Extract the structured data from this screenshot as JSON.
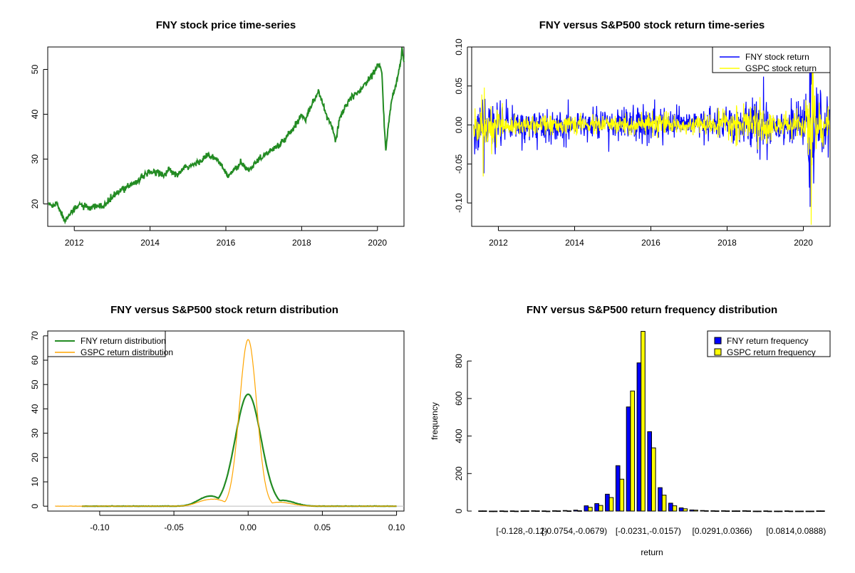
{
  "chart_data": [
    {
      "id": "price",
      "type": "line",
      "title": "FNY stock price time-series",
      "xlabel": "",
      "ylabel": "",
      "xlim": [
        2011.3,
        2020.7
      ],
      "ylim": [
        15,
        55
      ],
      "xticks": [
        2012,
        2014,
        2016,
        2018,
        2020
      ],
      "yticks": [
        20,
        30,
        40,
        50
      ],
      "series": [
        {
          "color": "#228b22",
          "x": [
            2011.33,
            2011.45,
            2011.55,
            2011.65,
            2011.75,
            2011.85,
            2012.0,
            2012.15,
            2012.3,
            2012.45,
            2012.6,
            2012.75,
            2012.9,
            2013.0,
            2013.2,
            2013.4,
            2013.6,
            2013.8,
            2014.0,
            2014.2,
            2014.4,
            2014.5,
            2014.7,
            2014.9,
            2015.1,
            2015.3,
            2015.5,
            2015.6,
            2015.75,
            2015.9,
            2016.05,
            2016.2,
            2016.4,
            2016.6,
            2016.8,
            2016.95,
            2017.2,
            2017.4,
            2017.6,
            2017.8,
            2018.0,
            2018.1,
            2018.25,
            2018.45,
            2018.65,
            2018.8,
            2018.9,
            2019.0,
            2019.1,
            2019.3,
            2019.5,
            2019.7,
            2019.9,
            2020.05,
            2020.12,
            2020.18,
            2020.22,
            2020.27,
            2020.32,
            2020.4,
            2020.5,
            2020.58,
            2020.65,
            2020.7
          ],
          "values": [
            20.0,
            19.5,
            20.3,
            18.0,
            16.2,
            17.8,
            18.5,
            20.0,
            19.2,
            19.0,
            19.6,
            19.4,
            20.5,
            21.5,
            22.8,
            24.0,
            24.8,
            26.0,
            27.0,
            27.2,
            26.5,
            27.8,
            26.2,
            28.0,
            28.5,
            29.5,
            30.8,
            30.5,
            30.0,
            28.5,
            26.0,
            27.5,
            29.0,
            27.5,
            29.5,
            30.5,
            32.0,
            33.0,
            35.0,
            37.0,
            40.0,
            39.0,
            42.0,
            45.0,
            40.0,
            37.0,
            34.0,
            39.0,
            41.0,
            43.5,
            45.0,
            47.0,
            49.5,
            51.5,
            49.0,
            37.0,
            32.0,
            36.0,
            40.0,
            44.0,
            47.0,
            50.0,
            54.5,
            52.0
          ]
        }
      ]
    },
    {
      "id": "returns",
      "type": "line",
      "title": "FNY versus S&P500 stock return time-series",
      "xlabel": "",
      "ylabel": "",
      "xlim": [
        2011.3,
        2020.7
      ],
      "ylim": [
        -0.13,
        0.1
      ],
      "xticks": [
        2012,
        2014,
        2016,
        2018,
        2020
      ],
      "yticks": [
        -0.1,
        -0.05,
        0.0,
        0.05,
        0.1
      ],
      "ytick_labels": [
        "-0.10",
        "-0.05",
        "0.00",
        "0.05",
        "0.10"
      ],
      "legend_position": "top-right",
      "series": [
        {
          "name": "FNY stock return",
          "color": "#0000ff",
          "volatility": [
            [
              2011.3,
              0.012
            ],
            [
              2011.5,
              0.022
            ],
            [
              2011.9,
              0.014
            ],
            [
              2012.5,
              0.01
            ],
            [
              2013.0,
              0.011
            ],
            [
              2014.0,
              0.01
            ],
            [
              2015.0,
              0.011
            ],
            [
              2016.0,
              0.012
            ],
            [
              2017.0,
              0.009
            ],
            [
              2018.0,
              0.012
            ],
            [
              2018.9,
              0.018
            ],
            [
              2019.3,
              0.011
            ],
            [
              2020.0,
              0.012
            ],
            [
              2020.2,
              0.04
            ],
            [
              2020.4,
              0.02
            ],
            [
              2020.7,
              0.014
            ]
          ],
          "extremes": [
            [
              2011.62,
              -0.062
            ],
            [
              2018.95,
              0.062
            ],
            [
              2019.05,
              -0.045
            ],
            [
              2020.18,
              -0.105
            ],
            [
              2020.22,
              0.078
            ],
            [
              2020.27,
              -0.075
            ]
          ]
        },
        {
          "name": "GSPC stock return",
          "color": "#ffff00",
          "volatility": [
            [
              2011.3,
              0.008
            ],
            [
              2011.5,
              0.018
            ],
            [
              2011.9,
              0.01
            ],
            [
              2012.5,
              0.006
            ],
            [
              2013.0,
              0.006
            ],
            [
              2014.0,
              0.005
            ],
            [
              2015.0,
              0.006
            ],
            [
              2016.0,
              0.008
            ],
            [
              2017.0,
              0.004
            ],
            [
              2018.0,
              0.009
            ],
            [
              2018.9,
              0.013
            ],
            [
              2019.3,
              0.007
            ],
            [
              2020.0,
              0.008
            ],
            [
              2020.2,
              0.04
            ],
            [
              2020.4,
              0.015
            ],
            [
              2020.7,
              0.01
            ]
          ],
          "extremes": [
            [
              2011.6,
              -0.066
            ],
            [
              2011.63,
              0.048
            ],
            [
              2020.2,
              -0.128
            ],
            [
              2020.23,
              0.09
            ]
          ]
        }
      ]
    },
    {
      "id": "density",
      "type": "line",
      "title": "FNY versus S&P500 stock return distribution",
      "xlabel": "",
      "ylabel": "",
      "xlim": [
        -0.135,
        0.105
      ],
      "ylim": [
        -2,
        72
      ],
      "xticks": [
        -0.1,
        -0.05,
        0.0,
        0.05,
        0.1
      ],
      "xtick_labels": [
        "-0.10",
        "-0.05",
        "0.00",
        "0.05",
        "0.10"
      ],
      "yticks": [
        0,
        10,
        20,
        30,
        40,
        50,
        60,
        70
      ],
      "legend_position": "top-left",
      "series": [
        {
          "name": "FNY return distribution",
          "color": "#228b22",
          "peak": 46,
          "sd": 0.0087,
          "tails": [
            [
              -0.03,
              2.4
            ],
            [
              -0.022,
              2.8
            ],
            [
              0.022,
              2.0
            ],
            [
              0.03,
              0.8
            ]
          ],
          "xrange": [
            -0.112,
            0.1
          ]
        },
        {
          "name": "GSPC return distribution",
          "color": "#ffa500",
          "peak": 68.5,
          "sd": 0.0058,
          "tails": [
            [
              -0.03,
              1.8
            ],
            [
              -0.02,
              2.2
            ],
            [
              0.02,
              1.5
            ],
            [
              0.03,
              0.5
            ]
          ],
          "xrange": [
            -0.13,
            0.1
          ]
        }
      ]
    },
    {
      "id": "histogram",
      "type": "bar",
      "title": "FNY versus S&P500 return frequency distribution",
      "xlabel": "return",
      "ylabel": "frequency",
      "ylim": [
        0,
        960
      ],
      "yticks": [
        0,
        200,
        400,
        600,
        800
      ],
      "legend_position": "top-right",
      "visible_category_labels": [
        "[-0.128,-0.12)",
        "[-0.0754,-0.0679)",
        "[-0.0231,-0.0157)",
        "[0.0291,0.0366)",
        "[0.0814,0.0888)"
      ],
      "label_every": 7,
      "series": [
        {
          "name": "FNY return frequency",
          "color": "#0000ff",
          "values": [
            1,
            0,
            1,
            1,
            1,
            2,
            1,
            2,
            3,
            5,
            28,
            40,
            90,
            242,
            555,
            790,
            423,
            125,
            42,
            17,
            6,
            3,
            2,
            2,
            1,
            2,
            0,
            1,
            0,
            1,
            0,
            0,
            1
          ]
        },
        {
          "name": "GSPC return frequency",
          "color": "#ffff00",
          "values": [
            1,
            0,
            0,
            0,
            1,
            1,
            0,
            1,
            1,
            2,
            20,
            30,
            72,
            170,
            640,
            958,
            337,
            85,
            28,
            12,
            5,
            2,
            1,
            1,
            1,
            1,
            0,
            0,
            0,
            0,
            0,
            0,
            1
          ]
        }
      ]
    }
  ]
}
